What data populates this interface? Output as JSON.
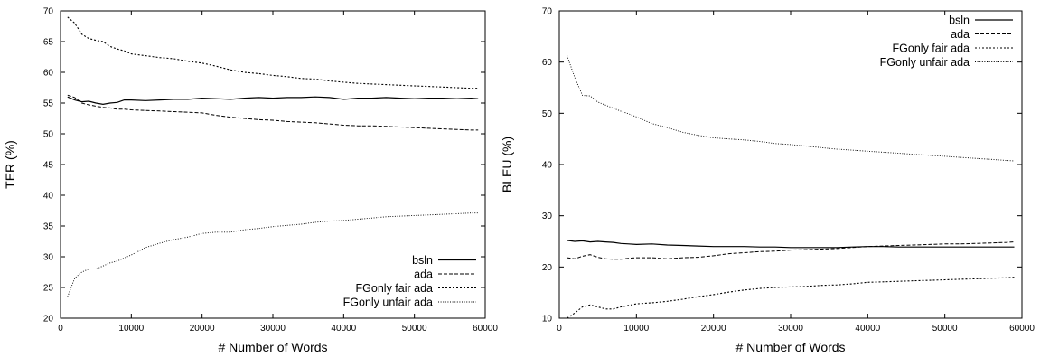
{
  "chart_data": [
    {
      "type": "line",
      "xlabel": "# Number of Words",
      "ylabel": "TER (%)",
      "xlim": [
        0,
        60000
      ],
      "ylim": [
        20,
        70
      ],
      "xticks": [
        0,
        10000,
        20000,
        30000,
        40000,
        50000,
        60000
      ],
      "yticks": [
        20,
        25,
        30,
        35,
        40,
        45,
        50,
        55,
        60,
        65,
        70
      ],
      "grid": false,
      "legend_position": "bottom-right",
      "x": [
        1000,
        2000,
        3000,
        4000,
        5000,
        6000,
        7000,
        8000,
        9000,
        10000,
        12000,
        14000,
        16000,
        18000,
        20000,
        22000,
        24000,
        26000,
        28000,
        30000,
        32000,
        34000,
        36000,
        38000,
        40000,
        42000,
        44000,
        46000,
        48000,
        50000,
        52000,
        54000,
        56000,
        58000,
        59000
      ],
      "series": [
        {
          "name": "bsln",
          "style": "solid",
          "values": [
            56.0,
            55.5,
            55.2,
            55.3,
            55.0,
            54.8,
            55.0,
            55.1,
            55.5,
            55.5,
            55.4,
            55.5,
            55.6,
            55.6,
            55.8,
            55.7,
            55.6,
            55.8,
            55.9,
            55.8,
            55.9,
            55.9,
            56.0,
            55.9,
            55.6,
            55.8,
            55.8,
            55.9,
            55.8,
            55.7,
            55.8,
            55.8,
            55.7,
            55.8,
            55.7
          ]
        },
        {
          "name": "ada",
          "style": "dashed",
          "values": [
            56.3,
            55.9,
            55.0,
            54.7,
            54.5,
            54.3,
            54.2,
            54.0,
            54.0,
            53.9,
            53.8,
            53.7,
            53.6,
            53.5,
            53.4,
            53.0,
            52.7,
            52.5,
            52.3,
            52.2,
            52.0,
            51.9,
            51.8,
            51.6,
            51.4,
            51.3,
            51.3,
            51.2,
            51.1,
            51.0,
            50.9,
            50.8,
            50.7,
            50.6,
            50.6
          ]
        },
        {
          "name": "FGonly fair ada",
          "style": "dotted",
          "values": [
            69.0,
            68.0,
            66.2,
            65.5,
            65.2,
            65.0,
            64.2,
            63.8,
            63.5,
            63.0,
            62.7,
            62.4,
            62.2,
            61.8,
            61.5,
            61.0,
            60.4,
            60.0,
            59.8,
            59.5,
            59.3,
            59.0,
            58.9,
            58.6,
            58.4,
            58.2,
            58.1,
            58.0,
            57.9,
            57.8,
            57.7,
            57.6,
            57.5,
            57.4,
            57.4
          ]
        },
        {
          "name": "FGonly unfair ada",
          "style": "finedotted",
          "values": [
            23.5,
            26.5,
            27.5,
            28.0,
            28.0,
            28.5,
            29.0,
            29.3,
            29.8,
            30.3,
            31.5,
            32.2,
            32.8,
            33.2,
            33.8,
            34.0,
            34.0,
            34.4,
            34.6,
            34.9,
            35.1,
            35.3,
            35.6,
            35.8,
            35.9,
            36.1,
            36.3,
            36.5,
            36.6,
            36.7,
            36.8,
            36.9,
            37.0,
            37.1,
            37.1
          ]
        }
      ]
    },
    {
      "type": "line",
      "xlabel": "# Number of Words",
      "ylabel": "BLEU (%)",
      "xlim": [
        0,
        60000
      ],
      "ylim": [
        10,
        70
      ],
      "xticks": [
        0,
        10000,
        20000,
        30000,
        40000,
        50000,
        60000
      ],
      "yticks": [
        10,
        20,
        30,
        40,
        50,
        60,
        70
      ],
      "grid": false,
      "legend_position": "top-right",
      "x": [
        1000,
        2000,
        3000,
        4000,
        5000,
        6000,
        7000,
        8000,
        9000,
        10000,
        12000,
        14000,
        16000,
        18000,
        20000,
        22000,
        24000,
        26000,
        28000,
        30000,
        32000,
        34000,
        36000,
        38000,
        40000,
        42000,
        44000,
        46000,
        48000,
        50000,
        52000,
        54000,
        56000,
        58000,
        59000
      ],
      "series": [
        {
          "name": "bsln",
          "style": "solid",
          "values": [
            25.2,
            25.0,
            25.1,
            24.9,
            25.0,
            24.9,
            24.8,
            24.6,
            24.5,
            24.4,
            24.5,
            24.3,
            24.2,
            24.1,
            24.0,
            24.0,
            24.0,
            23.9,
            23.9,
            23.8,
            23.8,
            23.8,
            23.8,
            23.9,
            24.0,
            24.0,
            23.9,
            23.9,
            23.9,
            23.9,
            23.9,
            23.9,
            23.9,
            23.9,
            23.9
          ]
        },
        {
          "name": "ada",
          "style": "dashed",
          "values": [
            21.8,
            21.6,
            22.1,
            22.4,
            21.9,
            21.6,
            21.5,
            21.5,
            21.7,
            21.8,
            21.8,
            21.6,
            21.8,
            21.9,
            22.2,
            22.6,
            22.8,
            23.0,
            23.1,
            23.3,
            23.4,
            23.5,
            23.6,
            23.8,
            24.0,
            24.1,
            24.2,
            24.3,
            24.4,
            24.5,
            24.5,
            24.6,
            24.7,
            24.8,
            24.9
          ]
        },
        {
          "name": "FGonly fair ada",
          "style": "dotted",
          "values": [
            10.0,
            11.0,
            12.2,
            12.6,
            12.2,
            11.8,
            11.8,
            12.2,
            12.5,
            12.8,
            13.0,
            13.3,
            13.7,
            14.2,
            14.6,
            15.1,
            15.5,
            15.8,
            16.0,
            16.1,
            16.2,
            16.4,
            16.5,
            16.7,
            17.0,
            17.1,
            17.2,
            17.3,
            17.4,
            17.5,
            17.6,
            17.7,
            17.8,
            17.9,
            18.0
          ]
        },
        {
          "name": "FGonly unfair ada",
          "style": "finedotted",
          "values": [
            61.3,
            57.0,
            53.5,
            53.4,
            52.2,
            51.6,
            51.0,
            50.4,
            49.9,
            49.3,
            48.0,
            47.2,
            46.3,
            45.7,
            45.2,
            45.0,
            44.8,
            44.5,
            44.1,
            43.9,
            43.6,
            43.3,
            43.0,
            42.8,
            42.6,
            42.4,
            42.2,
            42.0,
            41.8,
            41.6,
            41.4,
            41.2,
            41.0,
            40.8,
            40.7
          ]
        }
      ]
    }
  ]
}
